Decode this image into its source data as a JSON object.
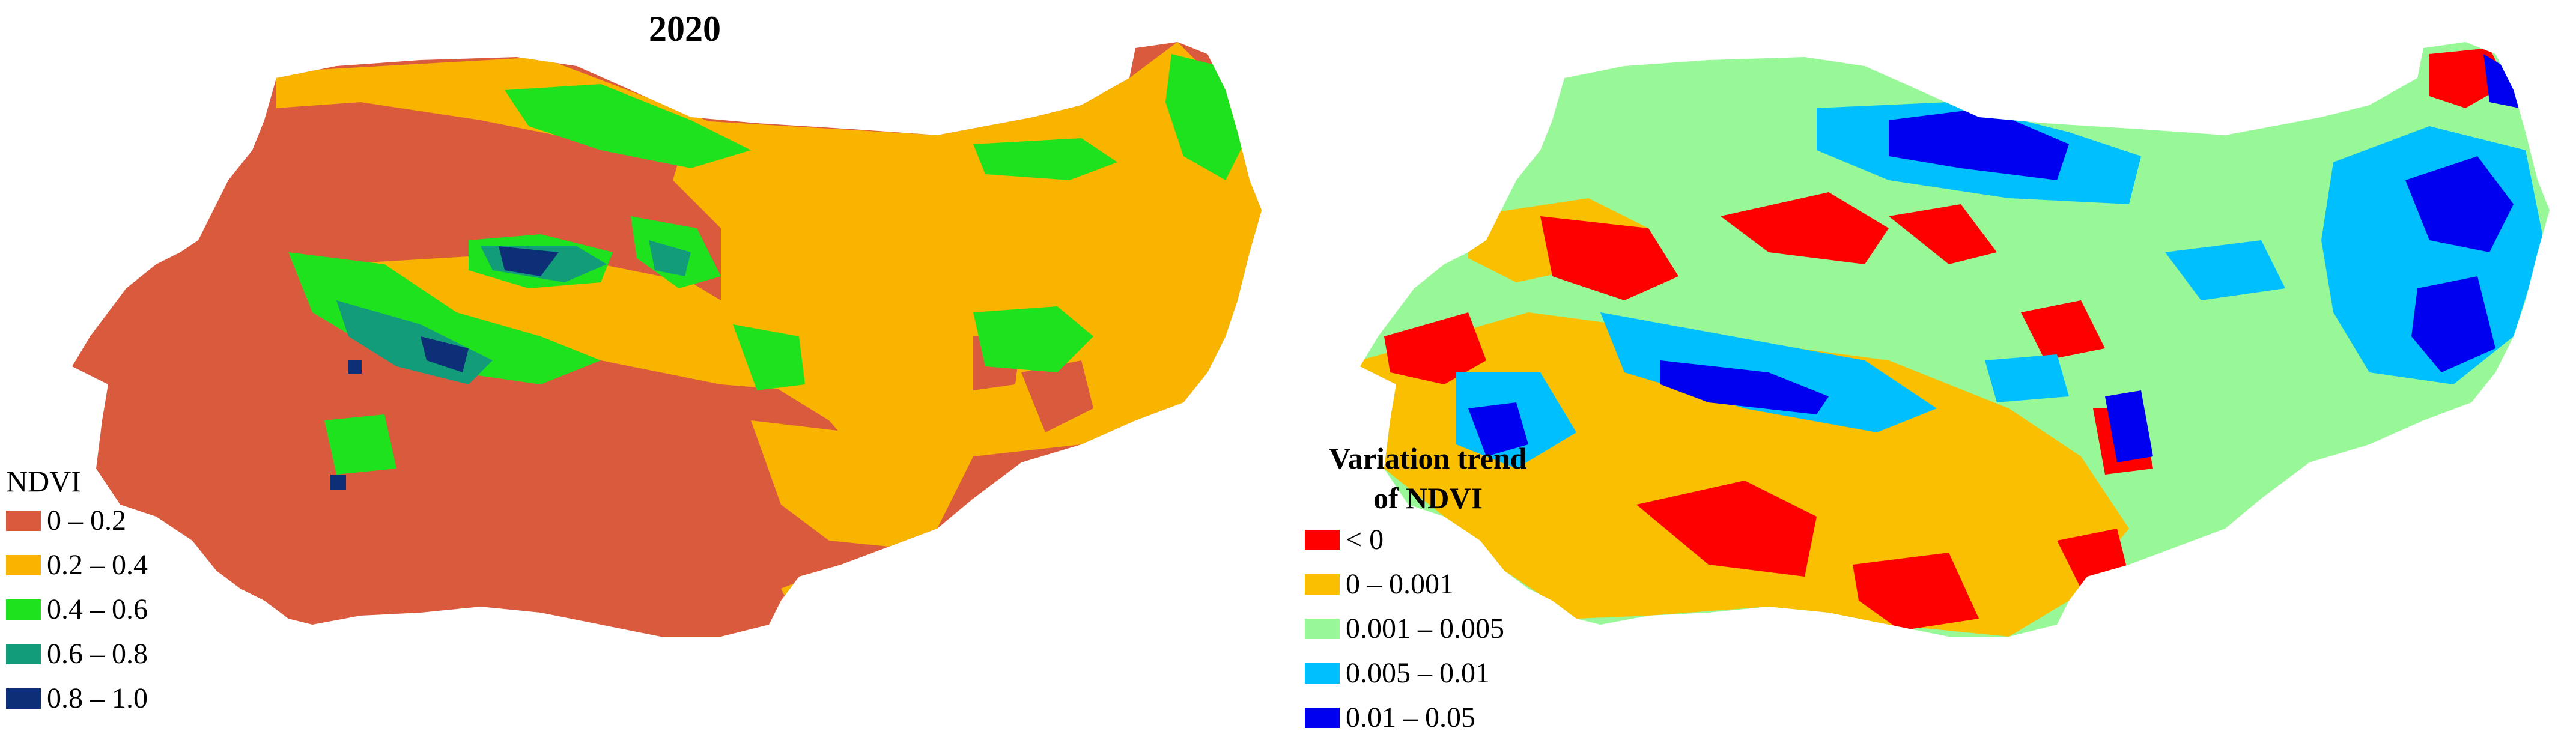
{
  "left_panel": {
    "title": "2020",
    "legend": {
      "title": "NDVI",
      "items": [
        {
          "label": "0 – 0.2",
          "color": "#DA5A3E"
        },
        {
          "label": "0.2 – 0.4",
          "color": "#F9B400"
        },
        {
          "label": "0.4 – 0.6",
          "color": "#1EE21E"
        },
        {
          "label": "0.6 – 0.8",
          "color": "#129C7A"
        },
        {
          "label": "0.8 – 1.0",
          "color": "#0D2F78"
        }
      ]
    }
  },
  "right_panel": {
    "legend": {
      "title_line1": "Variation trend",
      "title_line2": "of NDVI",
      "items": [
        {
          "label": "< 0",
          "color": "#FF0000"
        },
        {
          "label": "0 – 0.001",
          "color": "#F9BF00"
        },
        {
          "label": "0.001 – 0.005",
          "color": "#98F898"
        },
        {
          "label": "0.005 – 0.01",
          "color": "#00BFFF"
        },
        {
          "label": "0.01 – 0.05",
          "color": "#0000F0"
        }
      ]
    }
  }
}
